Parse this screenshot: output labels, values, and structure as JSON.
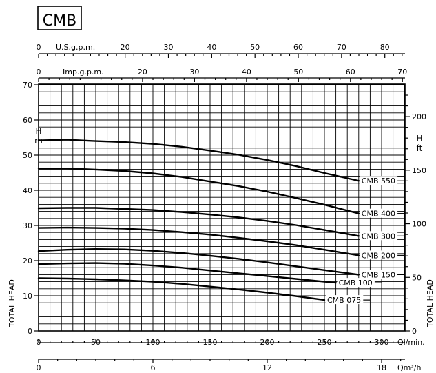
{
  "title": "CMB",
  "chart_data": {
    "type": "line",
    "title": "CMB",
    "grid": true,
    "axes": {
      "x_main": {
        "label": "Ql/min.",
        "range": [
          0,
          320
        ],
        "ticks": [
          "0",
          "50",
          "100",
          "150",
          "200",
          "250",
          "300"
        ]
      },
      "x_m3h": {
        "label": "Qm³/h",
        "ticks": [
          "0",
          "6",
          "12",
          "18"
        ]
      },
      "x_usgpm": {
        "label": "U.S.g.p.m.",
        "ticks": [
          "0",
          "20",
          "30",
          "40",
          "50",
          "60",
          "70",
          "80"
        ]
      },
      "x_impgpm": {
        "label": "Imp.g.p.m.",
        "ticks": [
          "0",
          "20",
          "30",
          "40",
          "50",
          "60",
          "70"
        ]
      },
      "y_left": {
        "label": "TOTAL HEAD",
        "unit_top": "H",
        "unit_bottom": "m",
        "range": [
          0,
          70
        ],
        "ticks": [
          "0",
          "10",
          "20",
          "30",
          "40",
          "50",
          "60",
          "70"
        ]
      },
      "y_right": {
        "label": "TOTAL HEAD",
        "unit_top": "H",
        "unit_bottom": "ft",
        "ticks": [
          "0",
          "50",
          "100",
          "150",
          "200"
        ]
      }
    },
    "series": [
      {
        "name": "CMB 550",
        "x": [
          0,
          25,
          50,
          75,
          100,
          125,
          150,
          175,
          200,
          225,
          250,
          280
        ],
        "y": [
          54.2,
          54.4,
          54.0,
          53.7,
          53.2,
          52.4,
          51.3,
          50.1,
          48.6,
          46.9,
          44.9,
          42.7
        ]
      },
      {
        "name": "CMB 400",
        "x": [
          0,
          25,
          50,
          75,
          100,
          125,
          150,
          175,
          200,
          225,
          250,
          280
        ],
        "y": [
          46.2,
          46.2,
          45.9,
          45.5,
          44.8,
          43.8,
          42.5,
          41.2,
          39.6,
          37.8,
          35.9,
          33.4
        ]
      },
      {
        "name": "CMB 300",
        "x": [
          0,
          25,
          50,
          75,
          100,
          125,
          150,
          175,
          200,
          225,
          250,
          280
        ],
        "y": [
          34.9,
          35.0,
          35.0,
          34.7,
          34.4,
          33.8,
          33.1,
          32.3,
          31.3,
          30.1,
          28.7,
          27.0
        ]
      },
      {
        "name": "CMB 200",
        "x": [
          0,
          25,
          50,
          75,
          100,
          125,
          150,
          175,
          200,
          225,
          250,
          280
        ],
        "y": [
          29.3,
          29.4,
          29.3,
          29.1,
          28.7,
          28.1,
          27.4,
          26.5,
          25.5,
          24.4,
          23.1,
          21.5
        ]
      },
      {
        "name": "CMB 150",
        "x": [
          0,
          25,
          50,
          75,
          100,
          125,
          150,
          175,
          200,
          225,
          250,
          280
        ],
        "y": [
          22.7,
          23.1,
          23.3,
          23.2,
          22.8,
          22.2,
          21.4,
          20.5,
          19.5,
          18.4,
          17.3,
          16.0
        ]
      },
      {
        "name": "CMB 100",
        "x": [
          0,
          25,
          50,
          75,
          100,
          125,
          150,
          175,
          200,
          225,
          250,
          260
        ],
        "y": [
          19.0,
          19.2,
          19.3,
          19.1,
          18.6,
          18.0,
          17.2,
          16.4,
          15.6,
          14.8,
          14.0,
          13.7
        ]
      },
      {
        "name": "CMB 075",
        "x": [
          0,
          25,
          50,
          75,
          100,
          125,
          150,
          175,
          200,
          225,
          250,
          250
        ],
        "y": [
          15.0,
          14.9,
          14.7,
          14.4,
          14.0,
          13.4,
          12.6,
          11.8,
          10.9,
          9.9,
          8.8,
          8.8
        ]
      }
    ]
  }
}
